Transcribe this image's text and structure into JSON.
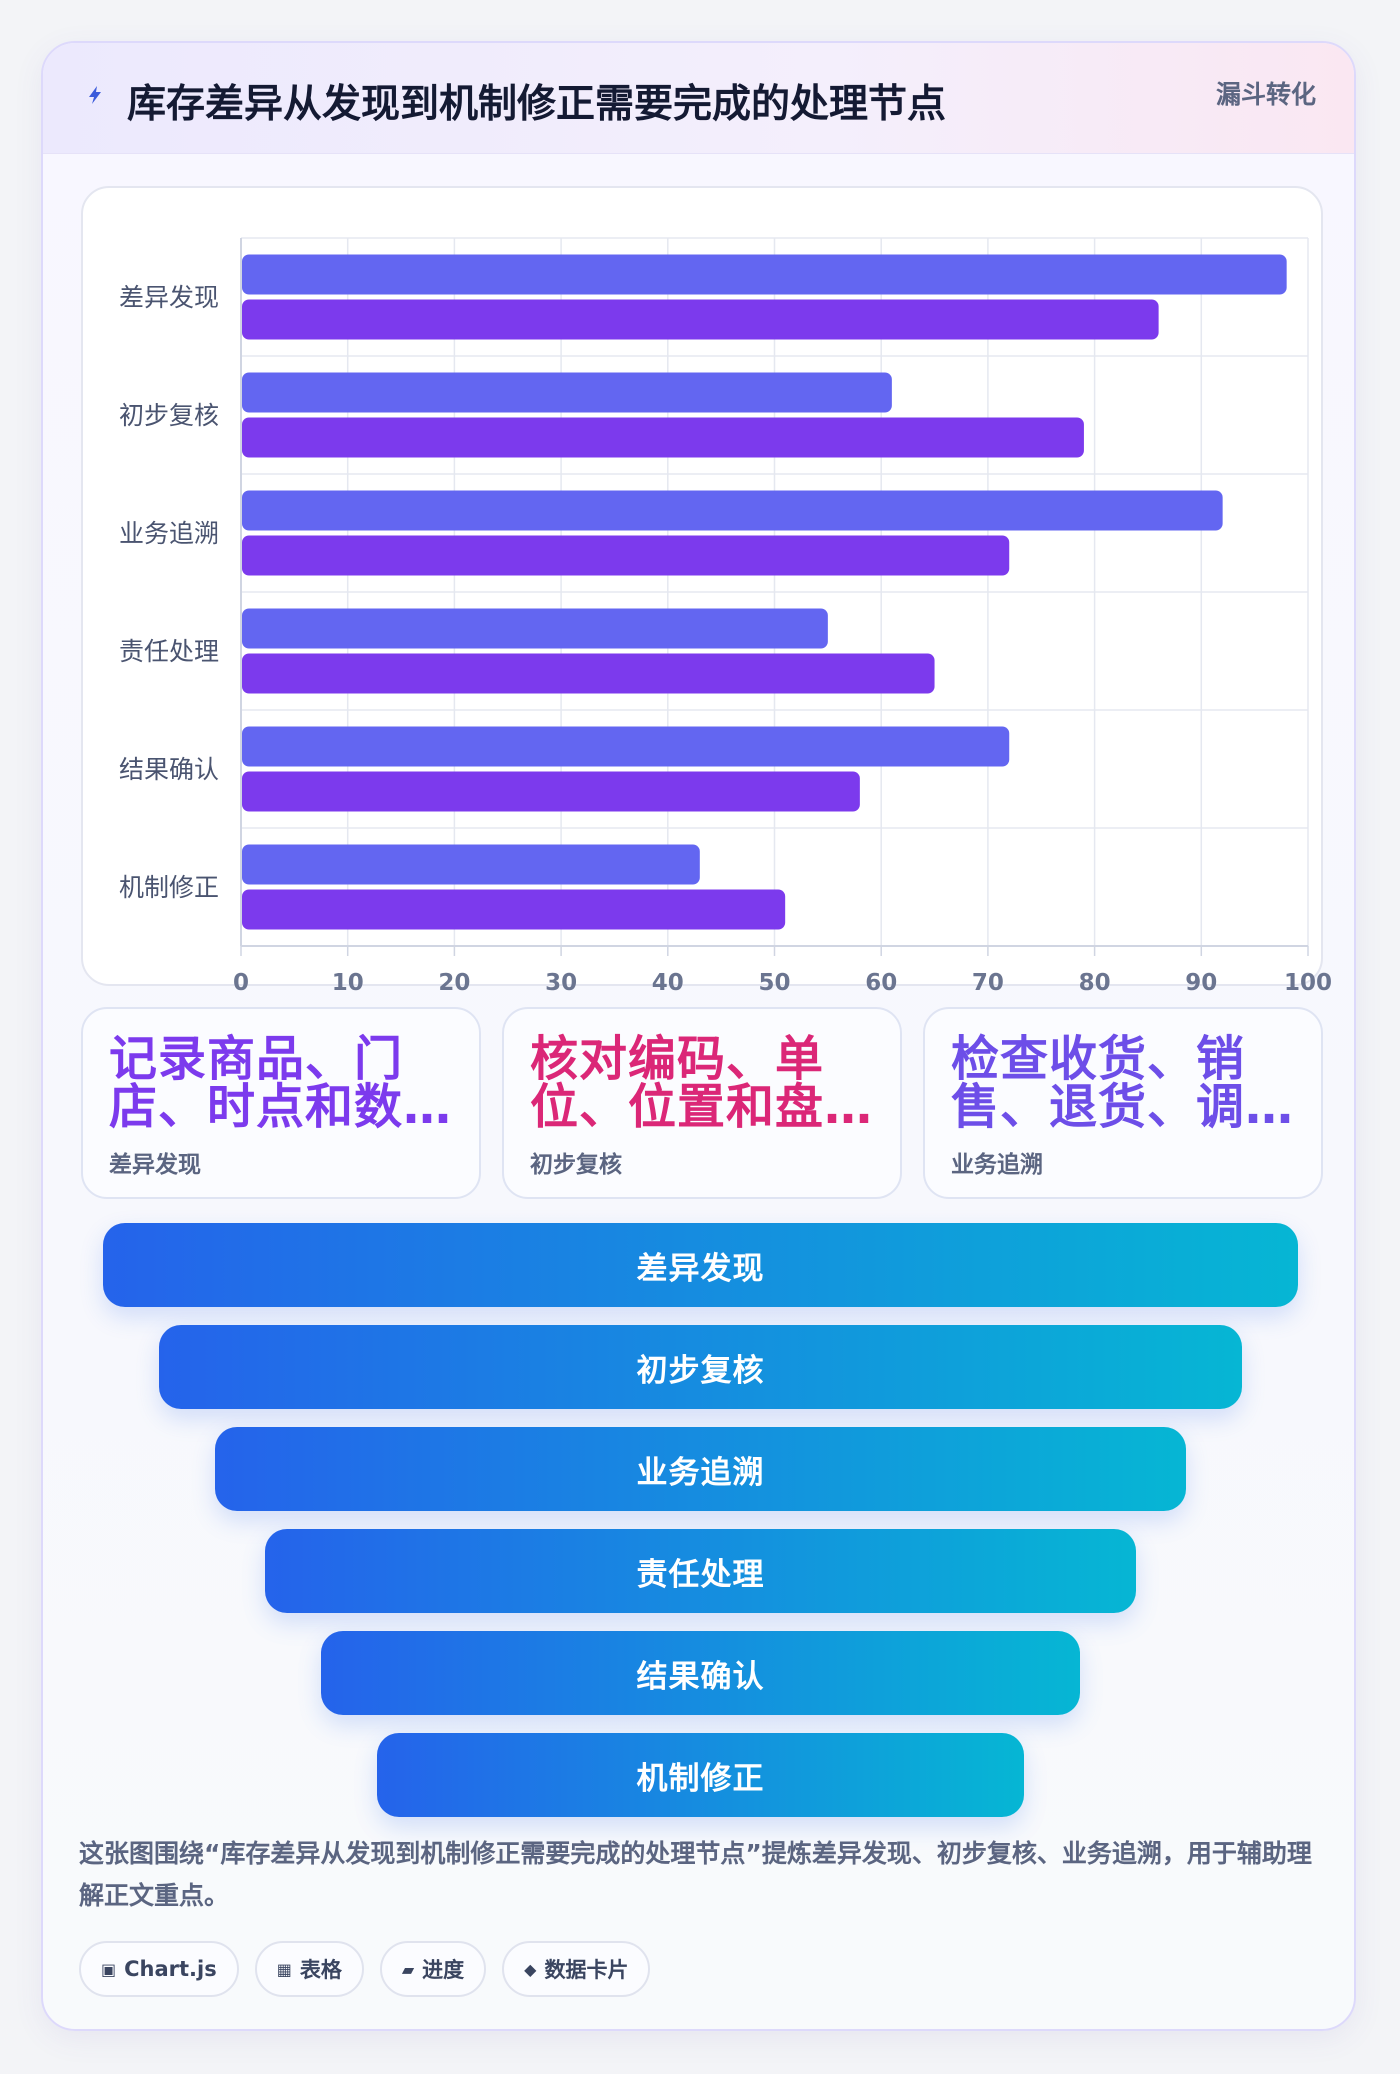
{
  "header": {
    "icon": "lightning-icon",
    "title": "库存差异从发现到机制修正需要完成的处理节点",
    "tag": "漏斗转化"
  },
  "colors": {
    "series_a": "#6366f1",
    "series_b": "#7c3aed",
    "funnel_start": "#2563eb",
    "funnel_end": "#06b6d4",
    "card_1": "#7c3aed",
    "card_2": "#db2777",
    "card_3": "#6d4ee8"
  },
  "chart_data": {
    "type": "bar",
    "orientation": "horizontal",
    "categories": [
      "差异发现",
      "初步复核",
      "业务追溯",
      "责任处理",
      "结果确认",
      "机制修正"
    ],
    "series": [
      {
        "values": [
          98,
          61,
          92,
          55,
          72,
          43
        ]
      },
      {
        "values": [
          86,
          79,
          72,
          65,
          58,
          51
        ]
      }
    ],
    "xlim": [
      0,
      100
    ],
    "xticks": [
      "0",
      "10",
      "20",
      "30",
      "40",
      "50",
      "60",
      "70",
      "80",
      "90",
      "100"
    ],
    "grid": true,
    "legend": "none",
    "title": "",
    "xlabel": "",
    "ylabel": ""
  },
  "cards": [
    {
      "value": "记录商品、门店、时点和数…",
      "label": "差异发现"
    },
    {
      "value": "核对编码、单位、位置和盘…",
      "label": "初步复核"
    },
    {
      "value": "检查收货、销售、退货、调…",
      "label": "业务追溯"
    }
  ],
  "funnel": {
    "steps": [
      "差异发现",
      "初步复核",
      "业务追溯",
      "责任处理",
      "结果确认",
      "机制修正"
    ]
  },
  "description": "这张图围绕“库存差异从发现到机制修正需要完成的处理节点”提炼差异发现、初步复核、业务追溯，用于辅助理解正文重点。",
  "chips": [
    {
      "icon": "chart-icon",
      "glyph": "▣",
      "label": "Chart.js"
    },
    {
      "icon": "table-icon",
      "glyph": "▦",
      "label": "表格"
    },
    {
      "icon": "progress-icon",
      "glyph": "▰",
      "label": "进度"
    },
    {
      "icon": "data-card-icon",
      "glyph": "◆",
      "label": "数据卡片"
    }
  ]
}
